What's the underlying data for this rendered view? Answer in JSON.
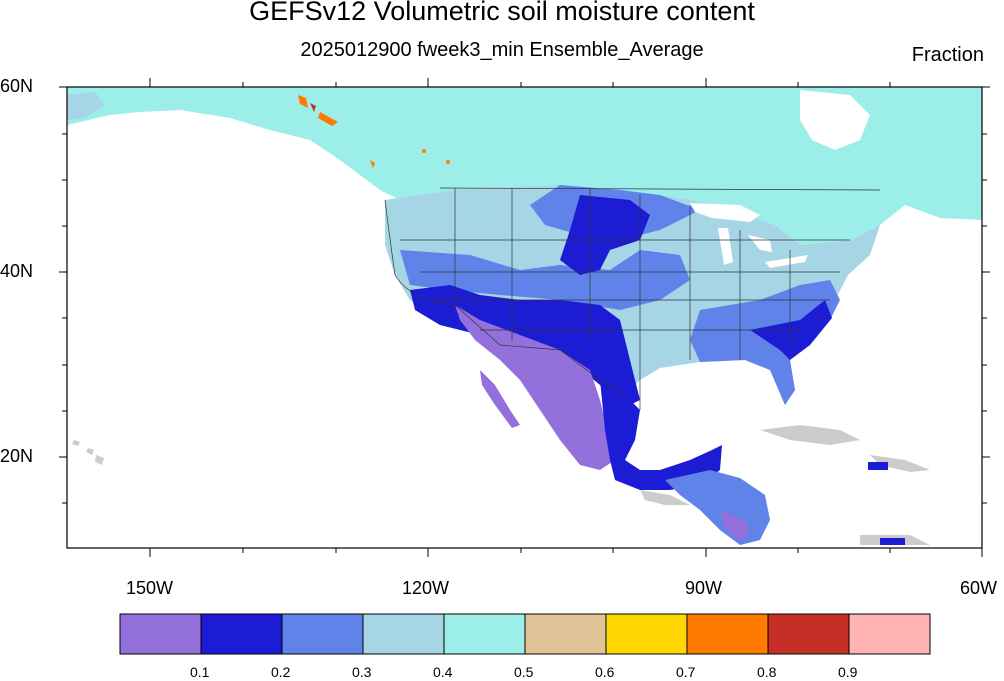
{
  "title": "GEFSv12 Volumetric soil moisture content",
  "subtitle": "2025012900 fweek3_min Ensemble_Average",
  "units": "Fraction",
  "lat_labels": [
    "60N",
    "40N",
    "20N"
  ],
  "lon_labels": [
    "150W",
    "120W",
    "90W",
    "60W"
  ],
  "colorbar": {
    "colors": [
      "#9370db",
      "#1c1cd4",
      "#5f83e8",
      "#a6d5e6",
      "#9ceee8",
      "#dfc397",
      "#ffd700",
      "#ff7b00",
      "#c62f26",
      "#ffb3b3"
    ],
    "labels": [
      "0.1",
      "0.2",
      "0.3",
      "0.4",
      "0.5",
      "0.6",
      "0.7",
      "0.8",
      "0.9"
    ]
  },
  "map": {
    "extent_lon": [
      "160W",
      "60W"
    ],
    "extent_lat": [
      "10N",
      "60N"
    ],
    "land_no_data_color": "#cccccc"
  }
}
